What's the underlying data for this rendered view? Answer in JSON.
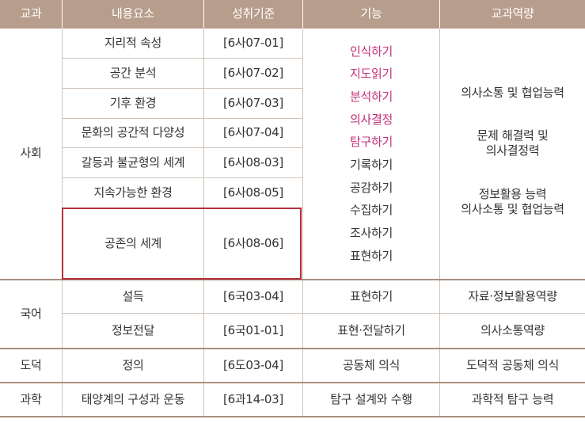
{
  "headers": [
    "교과",
    "내용요소",
    "성취기준",
    "기능",
    "교과역량"
  ],
  "social": {
    "subject": "사회",
    "rows": [
      {
        "content": "지리적 속성",
        "standard": "[6사07-01]"
      },
      {
        "content": "공간 분석",
        "standard": "[6사07-02]"
      },
      {
        "content": "기후 환경",
        "standard": "[6사07-03]"
      },
      {
        "content": "문화의 공간적 다양성",
        "standard": "[6사07-04]"
      },
      {
        "content": "갈등과 불균형의 세계",
        "standard": "[6사08-03]"
      },
      {
        "content": "지속가능한 환경",
        "standard": "[6사08-05]"
      },
      {
        "content": "공존의 세계",
        "standard": "[6사08-06]"
      }
    ],
    "skills": [
      "인식하기",
      "지도읽기",
      "분석하기",
      "의사결정",
      "탐구하기",
      "기록하기",
      "공감하기",
      "수집하기",
      "조사하기",
      "표현하기"
    ],
    "competency_1": "의사소통 및 협업능력",
    "competency_2a": "문제 해결력 및",
    "competency_2b": "의사결정력",
    "competency_3a": "정보활용 능력",
    "competency_3b": "의사소통 및 협업능력"
  },
  "korean": {
    "subject": "국어",
    "rows": [
      {
        "content": "설득",
        "standard": "[6국03-04]",
        "skill": "표현하기",
        "competency": "자료·정보활용역량"
      },
      {
        "content": "정보전달",
        "standard": "[6국01-01]",
        "skill": "표현·전달하기",
        "competency": "의사소통역량"
      }
    ]
  },
  "ethics": {
    "subject": "도덕",
    "content": "정의",
    "standard": "[6도03-04]",
    "skill": "공동체 의식",
    "competency": "도덕적 공동체 의식"
  },
  "science": {
    "subject": "과학",
    "content": "태양계의 구성과 운동",
    "standard": "[6과14-03]",
    "skill": "탐구 설계와 수행",
    "competency": "과학적 탐구 능력"
  },
  "colors": {
    "header_bg": "#b79d8b",
    "highlight_skill": "#c5317a",
    "highlight_box": "#b5303d"
  }
}
